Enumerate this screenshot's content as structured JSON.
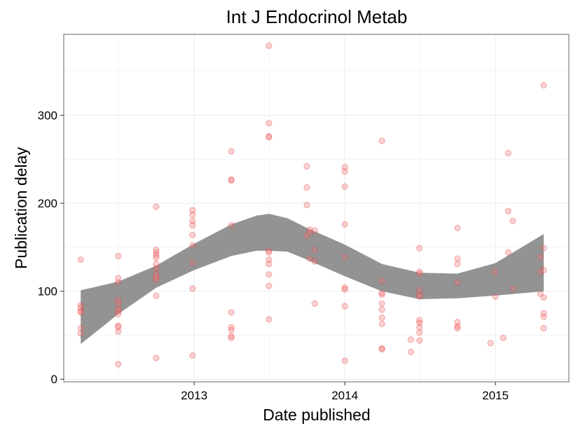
{
  "chart_data": {
    "type": "scatter",
    "title": "Int J Endocrinol Metab",
    "xlabel": "Date published",
    "ylabel": "Publication delay",
    "x_ticks": [
      "2013",
      "2014",
      "2015"
    ],
    "y_ticks": [
      "0",
      "100",
      "200",
      "300"
    ],
    "xlim": [
      "2012-02-20",
      "2015-06-28"
    ],
    "ylim": [
      -3,
      392
    ],
    "grid": true,
    "point_color": "#f08080",
    "smooth_color": "#808080",
    "points": [
      {
        "x": "2012-04-01",
        "y": 136
      },
      {
        "x": "2012-04-01",
        "y": 84
      },
      {
        "x": "2012-04-01",
        "y": 81
      },
      {
        "x": "2012-04-01",
        "y": 77
      },
      {
        "x": "2012-04-01",
        "y": 76
      },
      {
        "x": "2012-04-01",
        "y": 58
      },
      {
        "x": "2012-04-01",
        "y": 52
      },
      {
        "x": "2012-07-01",
        "y": 140
      },
      {
        "x": "2012-07-01",
        "y": 115
      },
      {
        "x": "2012-07-01",
        "y": 110
      },
      {
        "x": "2012-07-01",
        "y": 90
      },
      {
        "x": "2012-07-01",
        "y": 86
      },
      {
        "x": "2012-07-01",
        "y": 80
      },
      {
        "x": "2012-07-01",
        "y": 77
      },
      {
        "x": "2012-07-01",
        "y": 74
      },
      {
        "x": "2012-07-01",
        "y": 61
      },
      {
        "x": "2012-07-01",
        "y": 59
      },
      {
        "x": "2012-07-01",
        "y": 54
      },
      {
        "x": "2012-07-01",
        "y": 17
      },
      {
        "x": "2012-10-01",
        "y": 196
      },
      {
        "x": "2012-10-01",
        "y": 147
      },
      {
        "x": "2012-10-01",
        "y": 144
      },
      {
        "x": "2012-10-01",
        "y": 141
      },
      {
        "x": "2012-10-01",
        "y": 138
      },
      {
        "x": "2012-10-01",
        "y": 131
      },
      {
        "x": "2012-10-01",
        "y": 126
      },
      {
        "x": "2012-10-01",
        "y": 119
      },
      {
        "x": "2012-10-01",
        "y": 116
      },
      {
        "x": "2012-10-01",
        "y": 113
      },
      {
        "x": "2012-10-01",
        "y": 95
      },
      {
        "x": "2012-10-01",
        "y": 24
      },
      {
        "x": "2012-12-28",
        "y": 192
      },
      {
        "x": "2012-12-28",
        "y": 187
      },
      {
        "x": "2012-12-28",
        "y": 180
      },
      {
        "x": "2012-12-28",
        "y": 175
      },
      {
        "x": "2012-12-28",
        "y": 164
      },
      {
        "x": "2012-12-28",
        "y": 152
      },
      {
        "x": "2012-12-28",
        "y": 132
      },
      {
        "x": "2012-12-28",
        "y": 103
      },
      {
        "x": "2012-12-28",
        "y": 27
      },
      {
        "x": "2013-04-01",
        "y": 259
      },
      {
        "x": "2013-04-01",
        "y": 227
      },
      {
        "x": "2013-04-01",
        "y": 226
      },
      {
        "x": "2013-04-01",
        "y": 175
      },
      {
        "x": "2013-04-01",
        "y": 76
      },
      {
        "x": "2013-04-01",
        "y": 59
      },
      {
        "x": "2013-04-01",
        "y": 56
      },
      {
        "x": "2013-04-01",
        "y": 49
      },
      {
        "x": "2013-04-01",
        "y": 47
      },
      {
        "x": "2013-07-01",
        "y": 379
      },
      {
        "x": "2013-07-01",
        "y": 291
      },
      {
        "x": "2013-07-01",
        "y": 276
      },
      {
        "x": "2013-07-01",
        "y": 275
      },
      {
        "x": "2013-07-01",
        "y": 146
      },
      {
        "x": "2013-07-01",
        "y": 144
      },
      {
        "x": "2013-07-01",
        "y": 136
      },
      {
        "x": "2013-07-01",
        "y": 131
      },
      {
        "x": "2013-07-01",
        "y": 119
      },
      {
        "x": "2013-07-01",
        "y": 106
      },
      {
        "x": "2013-07-01",
        "y": 68
      },
      {
        "x": "2013-10-01",
        "y": 242
      },
      {
        "x": "2013-10-01",
        "y": 218
      },
      {
        "x": "2013-10-01",
        "y": 198
      },
      {
        "x": "2013-10-01",
        "y": 163
      },
      {
        "x": "2013-10-08",
        "y": 170
      },
      {
        "x": "2013-10-08",
        "y": 167
      },
      {
        "x": "2013-10-08",
        "y": 137
      },
      {
        "x": "2013-10-20",
        "y": 169
      },
      {
        "x": "2013-10-20",
        "y": 147
      },
      {
        "x": "2013-10-20",
        "y": 134
      },
      {
        "x": "2013-10-20",
        "y": 86
      },
      {
        "x": "2014-01-01",
        "y": 241
      },
      {
        "x": "2014-01-01",
        "y": 236
      },
      {
        "x": "2014-01-01",
        "y": 219
      },
      {
        "x": "2014-01-01",
        "y": 176
      },
      {
        "x": "2014-01-01",
        "y": 139
      },
      {
        "x": "2014-01-01",
        "y": 104
      },
      {
        "x": "2014-01-01",
        "y": 102
      },
      {
        "x": "2014-01-01",
        "y": 83
      },
      {
        "x": "2014-01-01",
        "y": 21
      },
      {
        "x": "2014-04-01",
        "y": 271
      },
      {
        "x": "2014-04-01",
        "y": 112
      },
      {
        "x": "2014-04-01",
        "y": 98
      },
      {
        "x": "2014-04-01",
        "y": 96
      },
      {
        "x": "2014-04-01",
        "y": 86
      },
      {
        "x": "2014-04-01",
        "y": 79
      },
      {
        "x": "2014-04-01",
        "y": 70
      },
      {
        "x": "2014-04-01",
        "y": 63
      },
      {
        "x": "2014-04-01",
        "y": 35
      },
      {
        "x": "2014-04-01",
        "y": 34
      },
      {
        "x": "2014-06-10",
        "y": 45
      },
      {
        "x": "2014-06-10",
        "y": 31
      },
      {
        "x": "2014-07-01",
        "y": 149
      },
      {
        "x": "2014-07-01",
        "y": 122
      },
      {
        "x": "2014-07-01",
        "y": 120
      },
      {
        "x": "2014-07-01",
        "y": 101
      },
      {
        "x": "2014-07-01",
        "y": 96
      },
      {
        "x": "2014-07-01",
        "y": 94
      },
      {
        "x": "2014-07-01",
        "y": 67
      },
      {
        "x": "2014-07-01",
        "y": 64
      },
      {
        "x": "2014-07-01",
        "y": 59
      },
      {
        "x": "2014-07-01",
        "y": 53
      },
      {
        "x": "2014-07-01",
        "y": 44
      },
      {
        "x": "2014-10-01",
        "y": 172
      },
      {
        "x": "2014-10-01",
        "y": 137
      },
      {
        "x": "2014-10-01",
        "y": 131
      },
      {
        "x": "2014-10-01",
        "y": 110
      },
      {
        "x": "2014-10-01",
        "y": 65
      },
      {
        "x": "2014-10-01",
        "y": 60
      },
      {
        "x": "2014-10-01",
        "y": 58
      },
      {
        "x": "2014-12-20",
        "y": 41
      },
      {
        "x": "2015-01-01",
        "y": 94
      },
      {
        "x": "2015-01-01",
        "y": 122
      },
      {
        "x": "2015-01-20",
        "y": 47
      },
      {
        "x": "2015-02-01",
        "y": 257
      },
      {
        "x": "2015-02-01",
        "y": 191
      },
      {
        "x": "2015-02-01",
        "y": 144
      },
      {
        "x": "2015-02-12",
        "y": 180
      },
      {
        "x": "2015-02-12",
        "y": 103
      },
      {
        "x": "2015-04-20",
        "y": 139
      },
      {
        "x": "2015-04-20",
        "y": 122
      },
      {
        "x": "2015-04-20",
        "y": 97
      },
      {
        "x": "2015-04-28",
        "y": 334
      },
      {
        "x": "2015-04-28",
        "y": 149
      },
      {
        "x": "2015-04-28",
        "y": 124
      },
      {
        "x": "2015-04-28",
        "y": 93
      },
      {
        "x": "2015-04-28",
        "y": 75
      },
      {
        "x": "2015-04-28",
        "y": 71
      },
      {
        "x": "2015-04-28",
        "y": 58
      }
    ],
    "smooth_band": [
      {
        "x": "2012-04-01",
        "lower": 40,
        "upper": 101
      },
      {
        "x": "2012-07-01",
        "lower": 74,
        "upper": 111
      },
      {
        "x": "2012-10-01",
        "lower": 104,
        "upper": 129
      },
      {
        "x": "2013-01-01",
        "lower": 124,
        "upper": 154
      },
      {
        "x": "2013-04-01",
        "lower": 140,
        "upper": 176
      },
      {
        "x": "2013-06-01",
        "lower": 146,
        "upper": 186
      },
      {
        "x": "2013-07-01",
        "lower": 146,
        "upper": 188
      },
      {
        "x": "2013-08-15",
        "lower": 145,
        "upper": 183
      },
      {
        "x": "2013-10-01",
        "lower": 136,
        "upper": 172
      },
      {
        "x": "2014-01-01",
        "lower": 117,
        "upper": 153
      },
      {
        "x": "2014-04-01",
        "lower": 100,
        "upper": 131
      },
      {
        "x": "2014-07-01",
        "lower": 91,
        "upper": 121
      },
      {
        "x": "2014-10-01",
        "lower": 92,
        "upper": 120
      },
      {
        "x": "2015-01-01",
        "lower": 95,
        "upper": 132
      },
      {
        "x": "2015-04-28",
        "lower": 100,
        "upper": 165
      }
    ]
  }
}
